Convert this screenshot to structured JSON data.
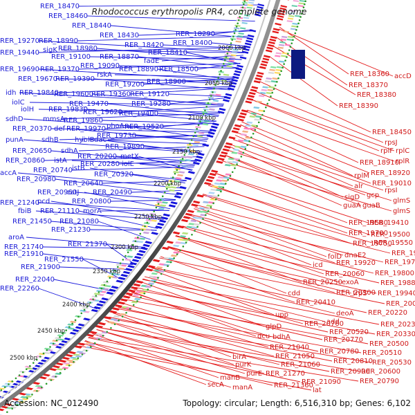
{
  "title": "Rhodococcus erythropolis PR4, complete genome",
  "footer": {
    "accession": "Accession: NC_012490",
    "summary": "Topology: circular; Length: 6,516,310 bp; Genes: 6,102"
  },
  "colors": {
    "forward_strand": "#e41a1a",
    "reverse_strand": "#1414dc",
    "backbone": "#606060",
    "tick_dots": "#2a9a2a"
  },
  "kbp_ticks": [
    "2000 kbp",
    "2050 kbp",
    "2100 kbp",
    "2150 kbp",
    "2200 kbp",
    "2250 kbp",
    "2300 kbp",
    "2350 kbp",
    "2400 kbp",
    "2450 kbp",
    "2500 kbp"
  ],
  "left_labels": [
    "RER_18470",
    "RER_18460",
    "RER_18440",
    "RER_18430",
    "RER_18420",
    "RER_18410",
    "RER_18290",
    "RER_18400",
    "RER_19270",
    "RER_18990",
    "sigK",
    "RER_18980",
    "RER_19440",
    "RER_19100",
    "RER_18870",
    "fadE",
    "RER_19090",
    "RER_19690",
    "RER_19370",
    "rskA",
    "RER_18890",
    "RER_18500",
    "RER_19670",
    "RER_19390",
    "RER_19200",
    "RER_18900",
    "idh",
    "RER_19840",
    "iolC",
    "RER_19600",
    "RER_19360",
    "RER_19120",
    "RER_19470",
    "RER_19280",
    "iolH",
    "RER_19830",
    "RER_19620",
    "RER_19400",
    "sdhD",
    "mmsA",
    "RER_19860",
    "phoA",
    "RER_19520",
    "RER_20370",
    "def",
    "RER_19970",
    "RER_19730",
    "punA",
    "sdhB",
    "hyi",
    "iolB",
    "dac",
    "RER_19890",
    "RER_20650",
    "sdhA",
    "RER_20200",
    "metX",
    "RER_20860",
    "istA",
    "istB",
    "RER_20280",
    "iolE",
    "accA",
    "RER_20740",
    "RER_20320",
    "RER_20980",
    "RER_20640",
    "RER_20960",
    "catJ",
    "RER_20490",
    "RER_21240",
    "pcd",
    "RER_20800",
    "fbiB",
    "RER_21110",
    "morA",
    "RER_21450",
    "RER_21080",
    "RER_21230",
    "aroA",
    "RER_21370",
    "RER_21740",
    "RER_21910",
    "RER_21550",
    "RER_21900",
    "RER_22040",
    "RER_22260"
  ],
  "right_labels": [
    "RER_18360",
    "accD",
    "RER_18370",
    "RER_18380",
    "RER_18390",
    "RER_18450",
    "rpsJ",
    "rplF",
    "rplC",
    "RER_18910",
    "rplR",
    "RER_18920",
    "rplM",
    "RER_19010",
    "alr",
    "rpsI",
    "gcp",
    "glmS",
    "sigD",
    "guaA",
    "guaB",
    "glmS",
    "RER_19580",
    "RER_19410",
    "RER_19700",
    "RER_19500",
    "RER_19750",
    "RER_19550",
    "RER_19630",
    "folD",
    "dnaE2",
    "icd",
    "RER_19920",
    "RER_19740",
    "RER_20060",
    "RER_19800",
    "RER_20250",
    "exoA",
    "RER_19880",
    "cdd",
    "RER_20300",
    "trpS",
    "RER_19940",
    "RER_20410",
    "RER_20080",
    "deoA",
    "RER_20220",
    "upp",
    "RER_20760",
    "add",
    "glpD",
    "RER_20520",
    "RER_20230",
    "dcu",
    "bdhA",
    "RER_20770",
    "RER_20330",
    "RER_21040",
    "RER_20500",
    "RER_20780",
    "RER_20510",
    "birA",
    "RER_21050",
    "RER_20810",
    "RER_20530",
    "purK",
    "RER_21060",
    "RER_20900",
    "RER_20600",
    "purE",
    "RER_21270",
    "manB",
    "RER_21090",
    "RER_20790",
    "secA",
    "manA",
    "RER_21360",
    "lat"
  ]
}
